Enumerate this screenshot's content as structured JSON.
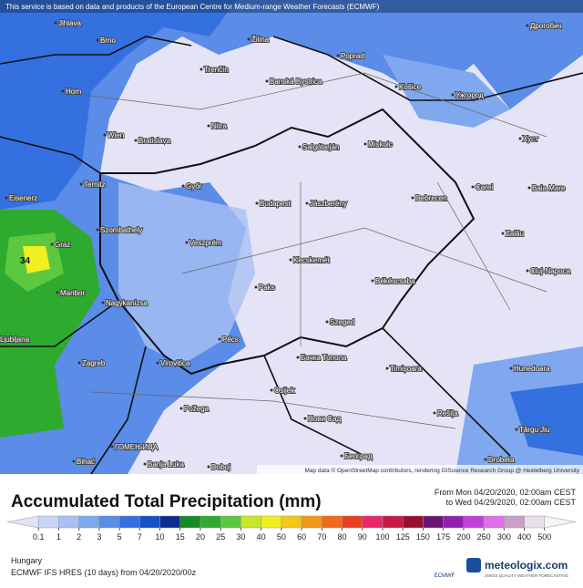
{
  "notice": "This service is based on data and products of the European Centre for Medium-range Weather Forecasts (ECMWF)",
  "attribution": "Map data © OpenStreetMap contributors, rendering GIScience Research Group @ Heidelberg University",
  "cities": [
    "Jihlava",
    "Brno",
    "Žilina",
    "Poprad",
    "Дрогобич",
    "Trenčín",
    "Banská Bystrica",
    "Košice",
    "Ужгород",
    "Horn",
    "Nitra",
    "Wien",
    "Bratislava",
    "Salgótarján",
    "Miskolc",
    "Хуст",
    "Ternitz",
    "Győr",
    "Debrecen",
    "Carei",
    "Baia Mare",
    "Eisenerz",
    "Budapest",
    "Jászberény",
    "Szombathely",
    "Graz",
    "Zalău",
    "Veszprém",
    "Kecskemét",
    "Cluj-Napoca",
    "Maribor",
    "Nagykanizsa",
    "Paks",
    "Békéscsaba",
    "Szeged",
    "Pécs",
    "Zagreb",
    "Virovitica",
    "Timișoara",
    "Hunedoara",
    "Osijek",
    "Бачка Топола",
    "Požega",
    "Нови Сад",
    "Rešița",
    "Târgu Jiu",
    "ГОМЕЊИЦА",
    "Bihać",
    "Banja Luka",
    "Doboj",
    "Београд",
    "Drobeta",
    "Ljubljana"
  ],
  "contour_label": "34",
  "title": "Accumulated Total Precipitation (mm)",
  "period_from": "From Mon 04/20/2020, 02:00am CEST",
  "period_to": "to Wed 04/29/2020, 02:00am CEST",
  "legend": {
    "ticks": [
      0.1,
      1,
      2,
      3,
      5,
      7,
      10,
      15,
      20,
      25,
      30,
      40,
      50,
      60,
      70,
      80,
      90,
      100,
      125,
      150,
      175,
      200,
      250,
      300,
      400,
      500
    ],
    "colors": [
      "#e2e2f6",
      "#c8d4f8",
      "#a8c0f2",
      "#80a8ee",
      "#5a8ce8",
      "#3470e0",
      "#1450c8",
      "#0c2c90",
      "#168a26",
      "#2eaa2e",
      "#5cc840",
      "#c8e628",
      "#f0f020",
      "#f0c818",
      "#f09818",
      "#f06a18",
      "#e84020",
      "#e82868",
      "#c81848",
      "#981030",
      "#6a1478",
      "#9020b0",
      "#c040d8",
      "#e070e8",
      "#c8a0c8",
      "#e8e0e8",
      "#f4f4f4"
    ]
  },
  "region": "Hungary",
  "model": "ECMWF IFS HRES (10 days) from 04/20/2020/00z",
  "brand": "meteologix.com",
  "tagline": "SWISS QUALITY WEATHER FORECASTING",
  "ecmwf": "ECMWF"
}
